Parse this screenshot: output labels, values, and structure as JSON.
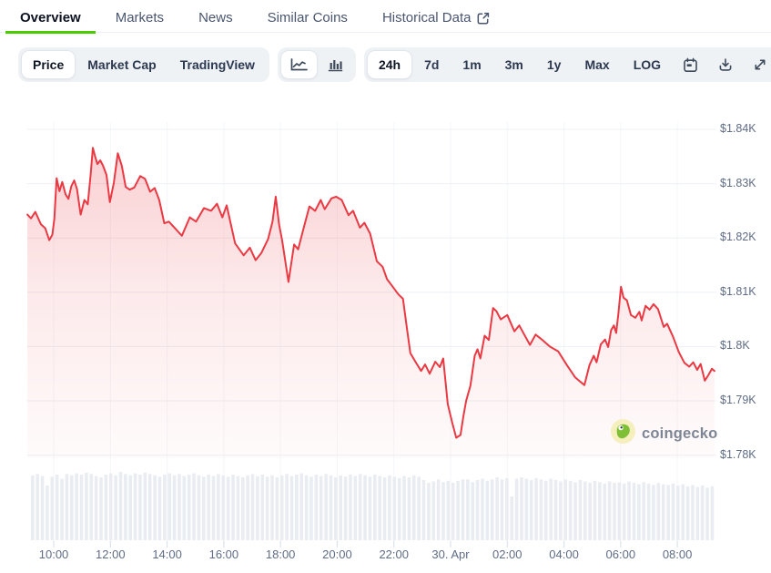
{
  "header": {
    "tabs": [
      {
        "label": "Overview",
        "active": true
      },
      {
        "label": "Markets",
        "active": false
      },
      {
        "label": "News",
        "active": false
      },
      {
        "label": "Similar Coins",
        "active": false
      },
      {
        "label": "Historical Data",
        "active": false,
        "external_link": true
      }
    ]
  },
  "toolbar": {
    "metric_toggle": {
      "options": [
        "Price",
        "Market Cap",
        "TradingView"
      ],
      "selected": "Price"
    },
    "chart_type_toggle": {
      "options": [
        "line-chart",
        "bar-chart"
      ],
      "selected": "line-chart"
    },
    "range_toggle": {
      "options": [
        "24h",
        "7d",
        "1m",
        "3m",
        "1y",
        "Max",
        "LOG"
      ],
      "selected": "24h"
    },
    "action_icons": [
      "calendar",
      "download",
      "fullscreen"
    ]
  },
  "watermark": {
    "text": "coingecko"
  },
  "chart_data": {
    "type": "area",
    "series_label": "price",
    "y_axis": {
      "labels": [
        "$1.84K",
        "$1.83K",
        "$1.82K",
        "$1.81K",
        "$1.8K",
        "$1.79K",
        "$1.78K"
      ],
      "values_usd": [
        1840,
        1830,
        1820,
        1810,
        1800,
        1790,
        1780
      ]
    },
    "x_axis": {
      "labels": [
        "10:00",
        "12:00",
        "14:00",
        "16:00",
        "18:00",
        "20:00",
        "22:00",
        "30. Apr",
        "02:00",
        "04:00",
        "06:00",
        "08:00"
      ],
      "hours_from_start": [
        1,
        3,
        5,
        7,
        9,
        11,
        13,
        15,
        17,
        19,
        21,
        23
      ],
      "start_time": "09:00"
    },
    "price_points": [
      [
        0.07,
        1824.3
      ],
      [
        0.2,
        1823.6
      ],
      [
        0.35,
        1824.8
      ],
      [
        0.55,
        1822.5
      ],
      [
        0.7,
        1821.8
      ],
      [
        0.84,
        1819.6
      ],
      [
        0.95,
        1820.6
      ],
      [
        1.02,
        1823.5
      ],
      [
        1.1,
        1831.0
      ],
      [
        1.2,
        1828.6
      ],
      [
        1.3,
        1830.3
      ],
      [
        1.42,
        1828.0
      ],
      [
        1.52,
        1827.2
      ],
      [
        1.62,
        1829.5
      ],
      [
        1.72,
        1830.6
      ],
      [
        1.82,
        1829.0
      ],
      [
        1.95,
        1824.3
      ],
      [
        2.08,
        1827.0
      ],
      [
        2.2,
        1826.2
      ],
      [
        2.3,
        1831.5
      ],
      [
        2.38,
        1836.6
      ],
      [
        2.46,
        1835.0
      ],
      [
        2.54,
        1833.6
      ],
      [
        2.64,
        1834.3
      ],
      [
        2.74,
        1833.3
      ],
      [
        2.86,
        1831.6
      ],
      [
        2.98,
        1826.6
      ],
      [
        3.12,
        1830.2
      ],
      [
        3.26,
        1835.6
      ],
      [
        3.4,
        1833.3
      ],
      [
        3.54,
        1829.4
      ],
      [
        3.68,
        1828.9
      ],
      [
        3.84,
        1829.3
      ],
      [
        4.05,
        1831.4
      ],
      [
        4.22,
        1830.9
      ],
      [
        4.4,
        1828.5
      ],
      [
        4.56,
        1829.2
      ],
      [
        4.72,
        1827.0
      ],
      [
        4.9,
        1822.7
      ],
      [
        5.06,
        1823.0
      ],
      [
        5.24,
        1822.0
      ],
      [
        5.52,
        1820.4
      ],
      [
        5.8,
        1823.8
      ],
      [
        6.02,
        1823.0
      ],
      [
        6.3,
        1825.5
      ],
      [
        6.55,
        1825.0
      ],
      [
        6.76,
        1826.3
      ],
      [
        6.95,
        1823.8
      ],
      [
        7.1,
        1826.0
      ],
      [
        7.4,
        1819.0
      ],
      [
        7.7,
        1816.8
      ],
      [
        7.92,
        1818.2
      ],
      [
        8.12,
        1815.9
      ],
      [
        8.32,
        1817.2
      ],
      [
        8.56,
        1819.8
      ],
      [
        8.72,
        1823.0
      ],
      [
        8.83,
        1827.6
      ],
      [
        8.95,
        1822.5
      ],
      [
        9.06,
        1819.5
      ],
      [
        9.28,
        1811.9
      ],
      [
        9.48,
        1818.8
      ],
      [
        9.62,
        1817.9
      ],
      [
        9.8,
        1821.5
      ],
      [
        10.02,
        1825.8
      ],
      [
        10.22,
        1825.0
      ],
      [
        10.42,
        1827.0
      ],
      [
        10.56,
        1825.3
      ],
      [
        10.8,
        1827.3
      ],
      [
        10.96,
        1827.6
      ],
      [
        11.16,
        1827.0
      ],
      [
        11.4,
        1824.2
      ],
      [
        11.56,
        1825.0
      ],
      [
        11.8,
        1821.9
      ],
      [
        11.96,
        1822.8
      ],
      [
        12.16,
        1820.8
      ],
      [
        12.4,
        1815.7
      ],
      [
        12.6,
        1814.7
      ],
      [
        12.76,
        1812.4
      ],
      [
        12.96,
        1811.0
      ],
      [
        13.16,
        1809.6
      ],
      [
        13.32,
        1808.8
      ],
      [
        13.46,
        1803.4
      ],
      [
        13.58,
        1798.8
      ],
      [
        13.76,
        1797.2
      ],
      [
        13.96,
        1795.5
      ],
      [
        14.1,
        1796.7
      ],
      [
        14.26,
        1795.0
      ],
      [
        14.46,
        1797.2
      ],
      [
        14.62,
        1796.2
      ],
      [
        14.74,
        1797.8
      ],
      [
        14.9,
        1789.4
      ],
      [
        15.05,
        1786.1
      ],
      [
        15.2,
        1783.2
      ],
      [
        15.35,
        1783.7
      ],
      [
        15.45,
        1787.1
      ],
      [
        15.55,
        1790.0
      ],
      [
        15.7,
        1792.8
      ],
      [
        15.85,
        1798.3
      ],
      [
        15.95,
        1799.5
      ],
      [
        16.05,
        1797.8
      ],
      [
        16.2,
        1802.0
      ],
      [
        16.35,
        1801.2
      ],
      [
        16.5,
        1807.1
      ],
      [
        16.62,
        1806.5
      ],
      [
        16.77,
        1805.0
      ],
      [
        17.0,
        1805.8
      ],
      [
        17.25,
        1802.8
      ],
      [
        17.42,
        1803.9
      ],
      [
        17.8,
        1800.3
      ],
      [
        18.0,
        1802.2
      ],
      [
        18.22,
        1801.3
      ],
      [
        18.5,
        1800.0
      ],
      [
        18.8,
        1799.1
      ],
      [
        19.1,
        1796.6
      ],
      [
        19.4,
        1794.3
      ],
      [
        19.72,
        1792.9
      ],
      [
        19.9,
        1796.6
      ],
      [
        20.05,
        1798.3
      ],
      [
        20.15,
        1797.1
      ],
      [
        20.3,
        1800.4
      ],
      [
        20.45,
        1801.3
      ],
      [
        20.56,
        1799.9
      ],
      [
        20.66,
        1803.0
      ],
      [
        20.76,
        1803.9
      ],
      [
        20.84,
        1802.5
      ],
      [
        20.92,
        1806.0
      ],
      [
        21.01,
        1811.0
      ],
      [
        21.1,
        1809.0
      ],
      [
        21.22,
        1808.5
      ],
      [
        21.36,
        1805.8
      ],
      [
        21.52,
        1805.3
      ],
      [
        21.66,
        1806.4
      ],
      [
        21.74,
        1804.8
      ],
      [
        21.88,
        1807.5
      ],
      [
        22.02,
        1806.8
      ],
      [
        22.16,
        1807.8
      ],
      [
        22.32,
        1806.9
      ],
      [
        22.52,
        1803.6
      ],
      [
        22.64,
        1804.2
      ],
      [
        22.85,
        1801.8
      ],
      [
        23.05,
        1799.0
      ],
      [
        23.25,
        1797.0
      ],
      [
        23.42,
        1796.3
      ],
      [
        23.56,
        1797.1
      ],
      [
        23.7,
        1795.7
      ],
      [
        23.82,
        1796.8
      ],
      [
        23.97,
        1793.7
      ],
      [
        24.1,
        1794.8
      ],
      [
        24.22,
        1795.9
      ],
      [
        24.31,
        1795.5
      ]
    ],
    "volume": {
      "relative_heights": [
        0.95,
        0.97,
        0.94,
        0.8,
        0.93,
        0.96,
        0.9,
        0.97,
        0.95,
        0.98,
        0.96,
        0.99,
        0.97,
        0.94,
        0.92,
        0.96,
        0.98,
        0.95,
        1.0,
        0.97,
        0.95,
        0.98,
        0.96,
        0.99,
        0.97,
        0.95,
        0.93,
        0.96,
        0.98,
        0.95,
        0.97,
        0.94,
        0.96,
        0.98,
        0.95,
        0.93,
        0.96,
        0.94,
        0.97,
        0.95,
        0.93,
        0.96,
        0.94,
        0.92,
        0.95,
        0.97,
        0.94,
        0.96,
        0.93,
        0.95,
        0.92,
        0.95,
        0.97,
        0.94,
        0.96,
        0.98,
        0.95,
        0.93,
        0.96,
        0.94,
        0.97,
        0.95,
        0.92,
        0.95,
        0.93,
        0.96,
        0.94,
        0.97,
        0.95,
        0.93,
        0.96,
        0.94,
        0.92,
        0.95,
        0.93,
        0.91,
        0.94,
        0.92,
        0.95,
        0.93,
        0.88,
        0.84,
        0.86,
        0.89,
        0.85,
        0.87,
        0.84,
        0.87,
        0.89,
        0.89,
        0.85,
        0.88,
        0.9,
        0.87,
        0.89,
        0.92,
        0.89,
        0.91,
        0.64,
        0.9,
        0.92,
        0.9,
        0.88,
        0.91,
        0.89,
        0.87,
        0.9,
        0.88,
        0.86,
        0.89,
        0.87,
        0.85,
        0.88,
        0.86,
        0.84,
        0.87,
        0.85,
        0.83,
        0.86,
        0.84,
        0.85,
        0.83,
        0.86,
        0.84,
        0.82,
        0.85,
        0.83,
        0.81,
        0.84,
        0.82,
        0.81,
        0.83,
        0.8,
        0.82,
        0.79,
        0.81,
        0.78,
        0.8,
        0.77,
        0.79
      ]
    },
    "colors": {
      "line": "#ea3943",
      "area_top": "rgba(234,57,67,0.24)",
      "area_mid": "rgba(234,57,67,0.11)",
      "area_bottom": "rgba(234,57,67,0.02)",
      "volume_bar": "#e9edf2",
      "grid": "#edf0f4",
      "vgrid": "#f4f6f9",
      "tick": "#dde3ea",
      "axis_text": "#5f6c86",
      "accent_green": "#4bcc00"
    }
  }
}
